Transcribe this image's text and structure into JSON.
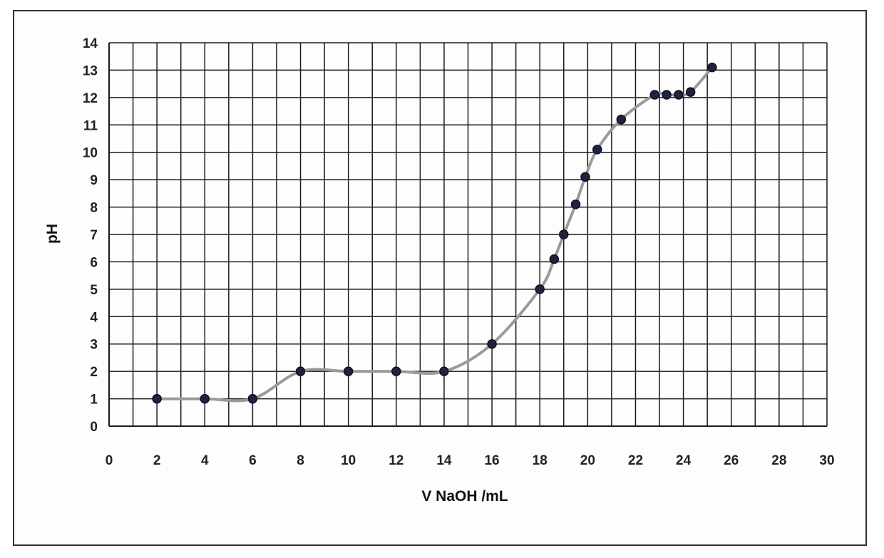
{
  "chart_data": {
    "type": "line",
    "title": "",
    "xlabel": "V NaOH /mL",
    "ylabel": "pH",
    "xlim": [
      0,
      30
    ],
    "ylim": [
      0,
      14
    ],
    "grid": true,
    "x_ticks": [
      0,
      2,
      4,
      6,
      8,
      10,
      12,
      14,
      16,
      18,
      20,
      22,
      24,
      26,
      28,
      30
    ],
    "y_ticks": [
      0,
      1,
      2,
      3,
      4,
      5,
      6,
      7,
      8,
      9,
      10,
      11,
      12,
      13,
      14
    ],
    "series": [
      {
        "x": [
          2,
          4,
          6,
          8,
          10,
          12,
          14,
          16,
          18,
          18.6,
          19,
          19.5,
          19.9,
          20.4,
          21.4,
          22.8,
          23.3,
          23.8,
          24.3,
          25.2
        ],
        "y": [
          1,
          1,
          1,
          2,
          2,
          2,
          2,
          3,
          5,
          6.1,
          7,
          8.1,
          9.1,
          10.1,
          11.2,
          12.1,
          12.1,
          12.1,
          12.2,
          13.1
        ]
      }
    ],
    "colors": {
      "grid": "#1a1a1a",
      "curve": "#9a9a9a",
      "point": "#1e2440"
    }
  }
}
